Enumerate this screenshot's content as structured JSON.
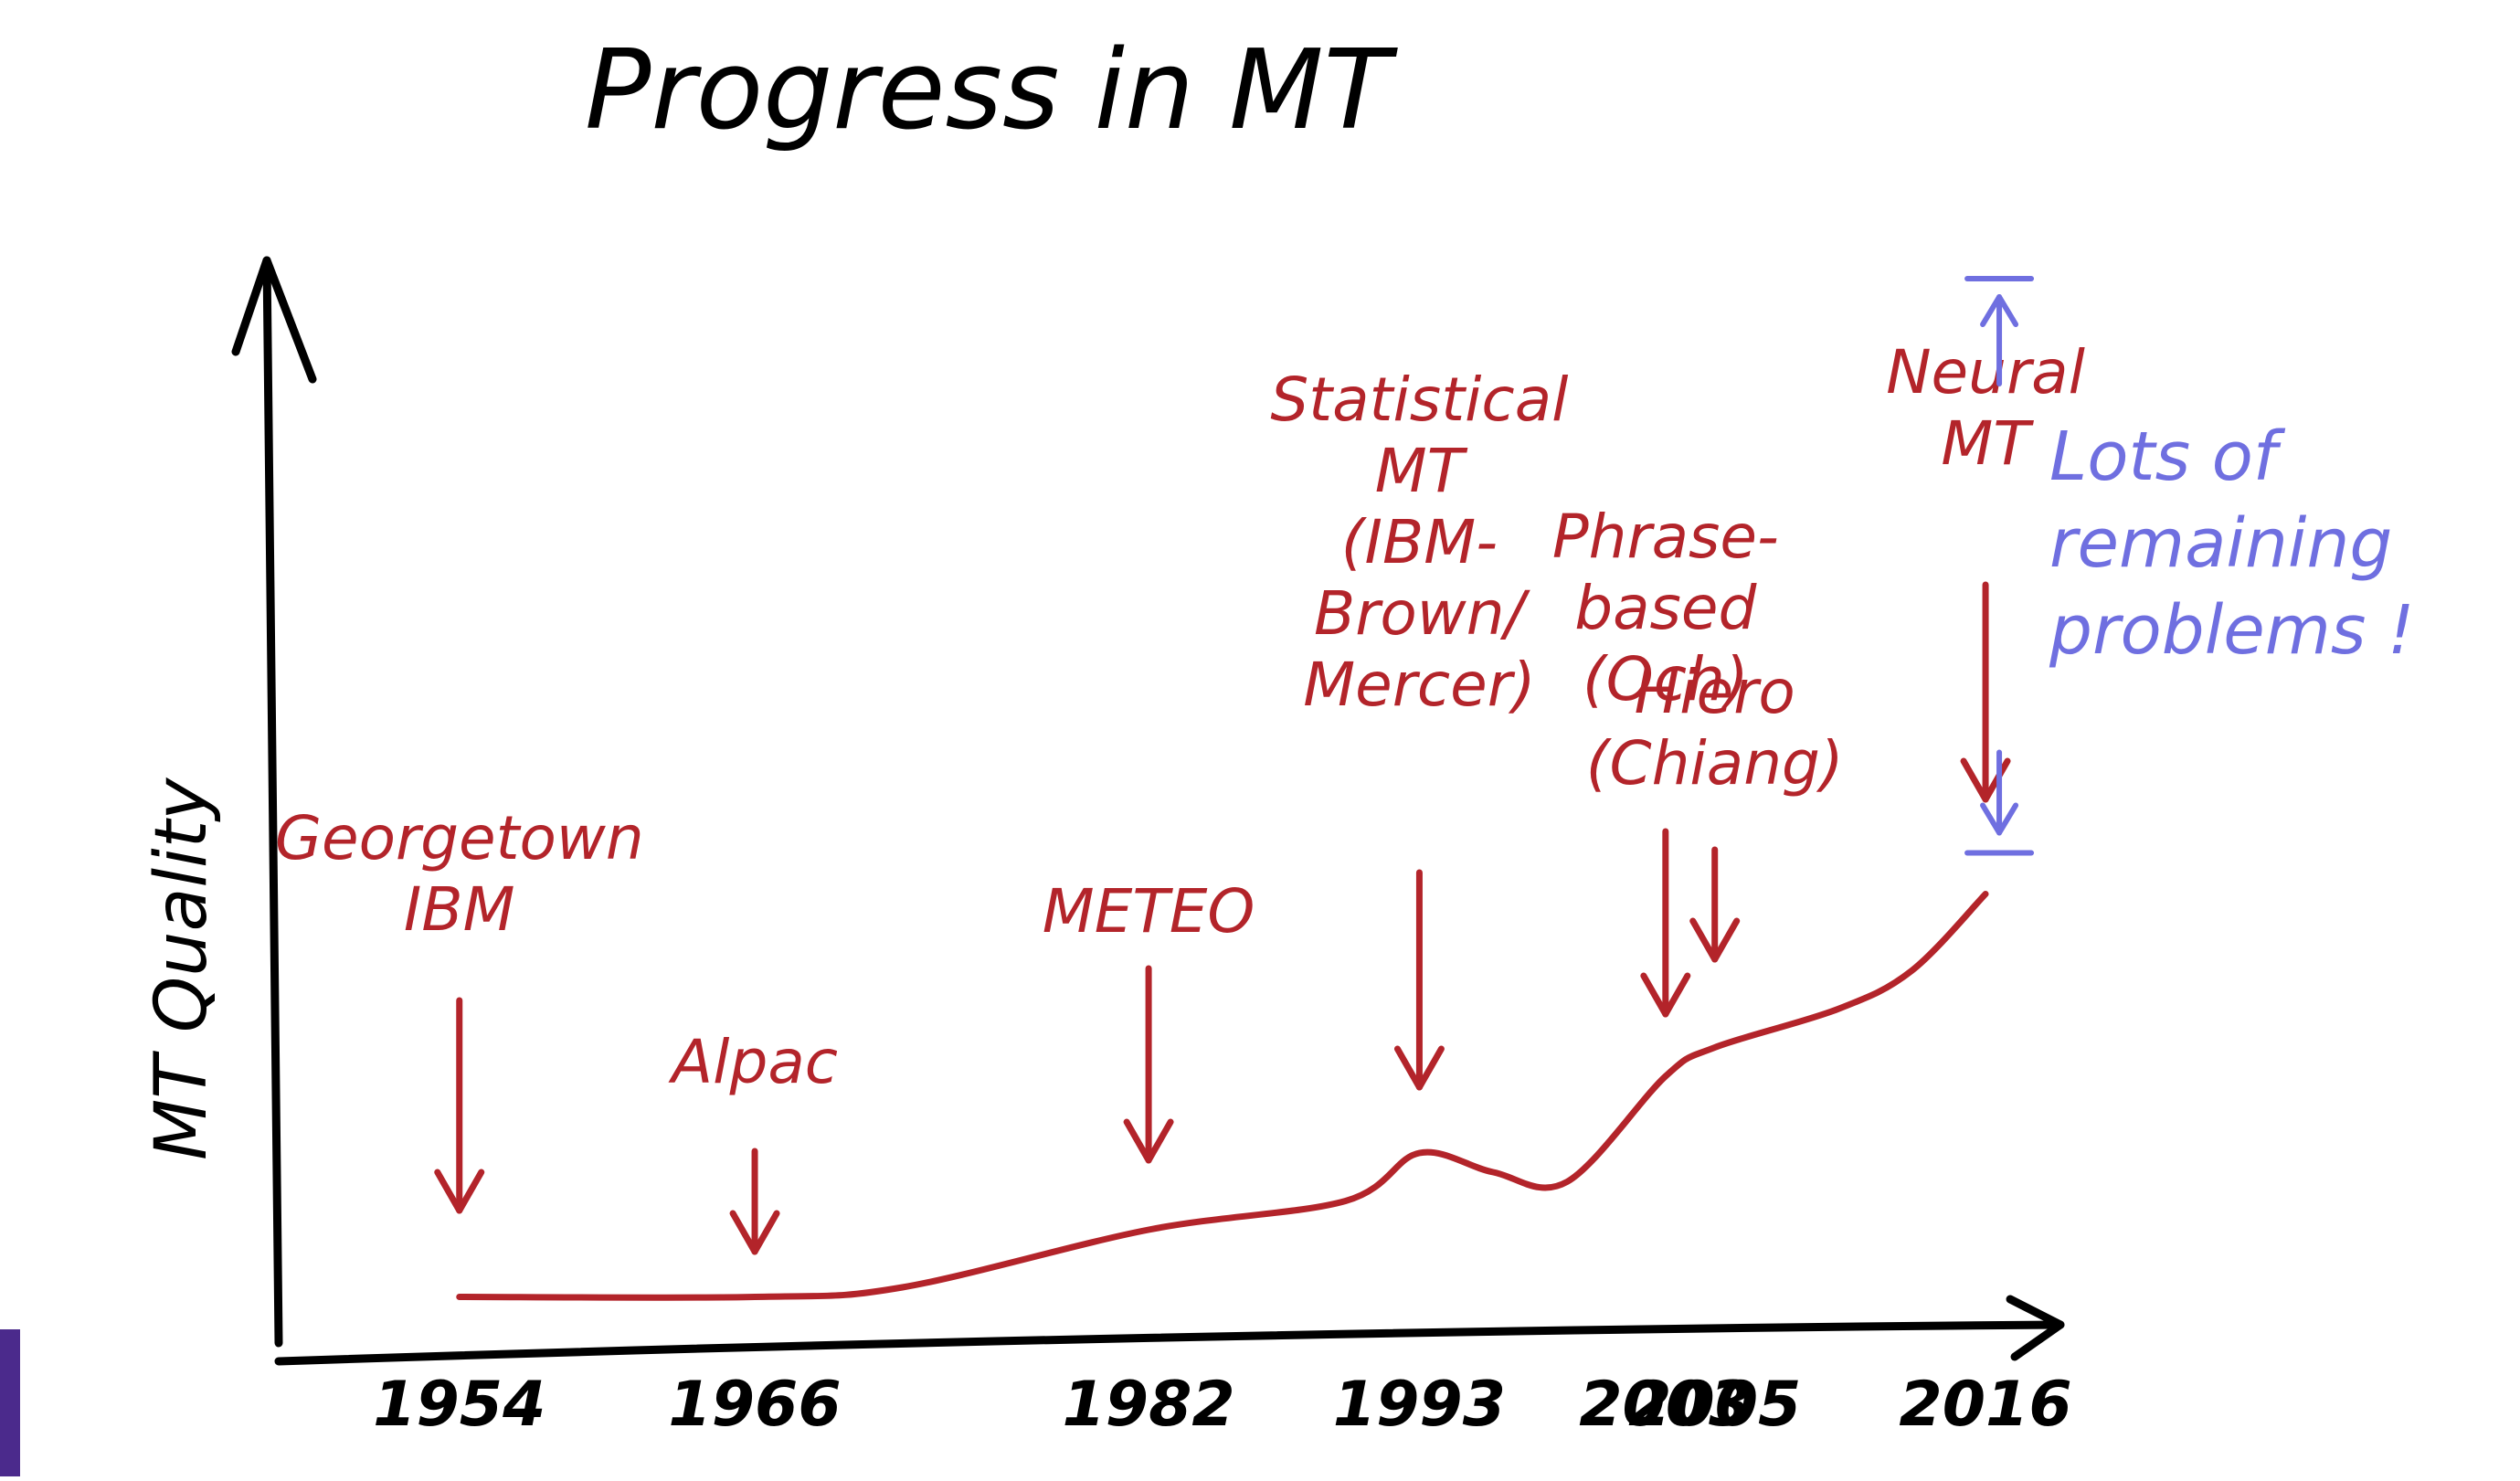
{
  "colors": {
    "ink": "#000000",
    "annotation": "#b3242a",
    "note": "#6f6fe0",
    "accent_bar": "#4b2a8c"
  },
  "chart_data": {
    "type": "line",
    "title": "Progress in MT",
    "ylabel": "MT Quality",
    "xlabel": "",
    "xlim": [
      1950,
      2017
    ],
    "ylim": [
      0,
      100
    ],
    "grid": false,
    "x_ticks": [
      "1954",
      "1966",
      "1982",
      "1993",
      "2003",
      "2005",
      "2016"
    ],
    "series": [
      {
        "x": [
          1954,
          1966,
          1972,
          1982,
          1990,
          1993,
          1996,
          1999,
          2003,
          2005,
          2010,
          2013,
          2016
        ],
        "y": [
          1,
          1,
          2,
          8,
          11,
          16,
          14,
          13,
          24,
          27,
          31,
          35,
          43
        ]
      }
    ],
    "annotations": [
      {
        "label": [
          "Georgetown",
          "IBM"
        ],
        "x": 1954
      },
      {
        "label": [
          "Alpac"
        ],
        "x": 1966
      },
      {
        "label": [
          "METEO"
        ],
        "x": 1982
      },
      {
        "label": [
          "Statistical",
          "MT",
          "(IBM-",
          "Brown/",
          "Mercer)"
        ],
        "x": 1993
      },
      {
        "label": [
          "Phrase-",
          "based",
          "(Och)"
        ],
        "x": 2003
      },
      {
        "label": [
          "Hiero",
          "(Chiang)"
        ],
        "x": 2005
      },
      {
        "label": [
          "Neural",
          "MT"
        ],
        "x": 2016
      }
    ],
    "note": {
      "lines": [
        "Lots of",
        "remaining",
        "problems !"
      ],
      "range": [
        43,
        100
      ]
    }
  }
}
